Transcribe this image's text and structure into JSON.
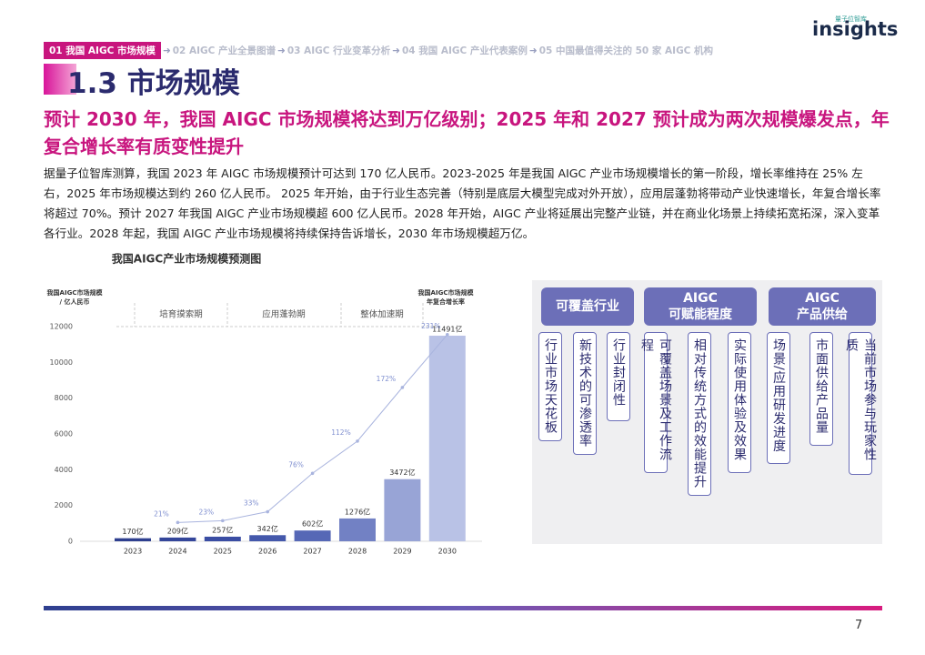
{
  "logo": {
    "small": "量子位智库",
    "name": "insights"
  },
  "nav": {
    "items": [
      "01 我国 AIGC 市场规模",
      "02 AIGC 产业全景图谱",
      "03 AIGC 行业变革分析",
      "04 我国 AIGC 产业代表案例",
      "05 中国最值得关注的 50 家 AIGC 机构"
    ]
  },
  "header": {
    "title": "1.3 市场规模",
    "subtitle": "预计 2030 年，我国 AIGC 市场规模将达到万亿级别；2025 年和 2027 预计成为两次规模爆发点，年复合增长率有质变性提升"
  },
  "body": {
    "text": "据量子位智库测算，我国 2023 年 AIGC 市场规模预计可达到 170 亿人民币。2023-2025 年是我国 AIGC 产业市场规模增长的第一阶段，增长率维持在 25% 左右，2025 年市场规模达到约 260 亿人民币。 2025 年开始，由于行业生态完善（特别是底层大模型完成对外开放），应用层蓬勃将带动产业快速增长，年复合增长率将超过 70%。预计 2027 年我国 AIGC 产业市场规模超 600 亿人民币。2028 年开始，AIGC 产业将延展出完整产业链，并在商业化场景上持续拓宽拓深，深入变革各行业。2028 年起，我国 AIGC 产业市场规模将持续保持告诉增长，2030 年市场规模超万亿。"
  },
  "chart_data": {
    "type": "bar",
    "title": "我国AIGC产业市场规模预测图",
    "y_label": [
      "我国AIGC市场规模",
      "/ 亿人民币"
    ],
    "y2_label": [
      "我国AIGC市场规模",
      "年复合增长率"
    ],
    "phases": [
      "培育摸索期",
      "应用蓬勃期",
      "整体加速期"
    ],
    "categories": [
      "2023",
      "2024",
      "2025",
      "2026",
      "2027",
      "2028",
      "2029",
      "2030"
    ],
    "values": [
      170,
      209,
      257,
      342,
      602,
      1276,
      3472,
      11491
    ],
    "value_labels": [
      "170亿",
      "209亿",
      "257亿",
      "342亿",
      "602亿",
      "1276亿",
      "3472亿",
      "11491亿"
    ],
    "colors": [
      "#2e3f8f",
      "#34469a",
      "#3a4da3",
      "#4458ab",
      "#5668b6",
      "#7281c4",
      "#98a4d6",
      "#b9c2e6"
    ],
    "ylim": [
      0,
      12000
    ],
    "yticks": [
      0,
      2000,
      4000,
      6000,
      8000,
      10000,
      12000
    ],
    "grid": false,
    "line": {
      "axis": "y2",
      "color": "#a9b4de",
      "label_color": "#7f8fd0",
      "values": [
        null,
        21,
        23,
        33,
        76,
        112,
        172,
        231
      ],
      "value_labels": [
        null,
        "21%",
        "23%",
        "33%",
        "76%",
        "112%",
        "172%",
        "231%"
      ]
    },
    "y2lim": [
      0,
      240
    ]
  },
  "panel": {
    "columns": [
      {
        "title": [
          "可覆盖行业"
        ],
        "items": [
          "行业市场天花板",
          "新技术的可渗透率",
          "行业封闭性"
        ]
      },
      {
        "title": [
          "AIGC",
          "可赋能程度"
        ],
        "items": [
          "可覆盖场景及工作流程",
          "相对传统方式的效能提升",
          "实际使用体验及效果"
        ]
      },
      {
        "title": [
          "AIGC",
          "产品供给"
        ],
        "items": [
          "场景/应用研发进度",
          "市面供给产品量",
          "当前市场参与玩家性质"
        ]
      }
    ]
  },
  "footer": {
    "page": "7"
  }
}
